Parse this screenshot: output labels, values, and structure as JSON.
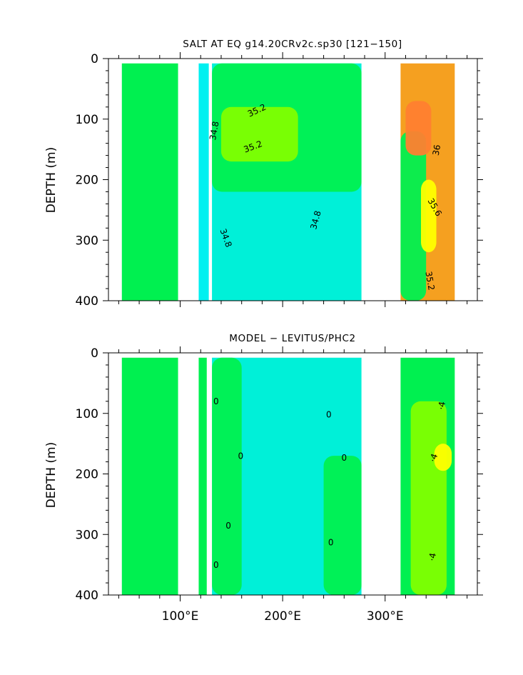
{
  "chart_data": [
    {
      "type": "heatmap",
      "title": "SALT AT EQ g14.20CRv2c.sp30 [121−150]",
      "ylabel": "DEPTH (m)",
      "xlabel": "",
      "xlim": [
        30,
        390
      ],
      "ylim": [
        400,
        0
      ],
      "y_ticks": [
        {
          "value": 0,
          "label": "0"
        },
        {
          "value": 100,
          "label": "100"
        },
        {
          "value": 200,
          "label": "200"
        },
        {
          "value": 300,
          "label": "300"
        },
        {
          "value": 400,
          "label": "400"
        }
      ],
      "x_ticks": [
        {
          "value": 100,
          "label": "100°E"
        },
        {
          "value": 200,
          "label": "200°E"
        },
        {
          "value": 300,
          "label": "300°E"
        }
      ],
      "land_gaps": [
        [
          98,
          118
        ],
        [
          128,
          131
        ],
        [
          277,
          315
        ],
        [
          368,
          390
        ],
        [
          30,
          43
        ]
      ],
      "sections": [
        {
          "x0": 43,
          "x1": 98,
          "color": "#00f050"
        },
        {
          "x0": 118,
          "x1": 128,
          "color": "#00f0f0"
        },
        {
          "x0": 131,
          "x1": 277,
          "color": "#00f0d8"
        },
        {
          "x0": 315,
          "x1": 368,
          "color": "#f5a020"
        }
      ],
      "regions": [
        {
          "x0": 131,
          "x1": 277,
          "y0": 0,
          "y1": 220,
          "color": "#00f050"
        },
        {
          "x0": 140,
          "x1": 215,
          "y0": 80,
          "y1": 170,
          "color": "#80ff00"
        },
        {
          "x0": 315,
          "x1": 340,
          "y0": 120,
          "y1": 400,
          "color": "#00f050"
        },
        {
          "x0": 335,
          "x1": 350,
          "y0": 200,
          "y1": 320,
          "color": "#ffff00"
        },
        {
          "x0": 320,
          "x1": 345,
          "y0": 70,
          "y1": 160,
          "color": "#ff8030"
        }
      ],
      "contour_labels": [
        {
          "text": "35.2",
          "x": 176,
          "y": 90,
          "rotate": -25
        },
        {
          "text": "34.8",
          "x": 136,
          "y": 120,
          "rotate": -80
        },
        {
          "text": "35.2",
          "x": 172,
          "y": 150,
          "rotate": -20
        },
        {
          "text": "34.8",
          "x": 235,
          "y": 268,
          "rotate": -75
        },
        {
          "text": "34.8",
          "x": 142,
          "y": 298,
          "rotate": 70
        },
        {
          "text": "36",
          "x": 353,
          "y": 152,
          "rotate": -80
        },
        {
          "text": "35.6",
          "x": 346,
          "y": 248,
          "rotate": 60
        },
        {
          "text": "35.2",
          "x": 341,
          "y": 368,
          "rotate": 80
        }
      ]
    },
    {
      "type": "heatmap",
      "title": "MODEL − LEVITUS/PHC2",
      "ylabel": "DEPTH (m)",
      "xlabel": "",
      "xlim": [
        30,
        390
      ],
      "ylim": [
        400,
        0
      ],
      "y_ticks": [
        {
          "value": 0,
          "label": "0"
        },
        {
          "value": 100,
          "label": "100"
        },
        {
          "value": 200,
          "label": "200"
        },
        {
          "value": 300,
          "label": "300"
        },
        {
          "value": 400,
          "label": "400"
        }
      ],
      "x_ticks": [
        {
          "value": 100,
          "label": "100°E"
        },
        {
          "value": 200,
          "label": "200°E"
        },
        {
          "value": 300,
          "label": "300°E"
        }
      ],
      "land_gaps": [
        [
          98,
          118
        ],
        [
          126,
          131
        ],
        [
          277,
          315
        ],
        [
          368,
          390
        ],
        [
          30,
          43
        ]
      ],
      "sections": [
        {
          "x0": 43,
          "x1": 98,
          "color": "#00f050"
        },
        {
          "x0": 118,
          "x1": 126,
          "color": "#00f050"
        },
        {
          "x0": 131,
          "x1": 277,
          "color": "#00f0d8"
        },
        {
          "x0": 315,
          "x1": 368,
          "color": "#00f050"
        }
      ],
      "regions": [
        {
          "x0": 131,
          "x1": 160,
          "y0": 0,
          "y1": 400,
          "color": "#00f050"
        },
        {
          "x0": 240,
          "x1": 277,
          "y0": 170,
          "y1": 400,
          "color": "#00f050"
        },
        {
          "x0": 325,
          "x1": 360,
          "y0": 80,
          "y1": 400,
          "color": "#80ff00"
        },
        {
          "x0": 348,
          "x1": 365,
          "y0": 150,
          "y1": 195,
          "color": "#ffff00"
        }
      ],
      "contour_labels": [
        {
          "text": "0",
          "x": 135,
          "y": 85,
          "rotate": 0
        },
        {
          "text": "0",
          "x": 245,
          "y": 107,
          "rotate": 0
        },
        {
          "text": "0",
          "x": 159,
          "y": 175,
          "rotate": 0
        },
        {
          "text": "0",
          "x": 260,
          "y": 178,
          "rotate": 0
        },
        {
          "text": "0",
          "x": 147,
          "y": 290,
          "rotate": 0
        },
        {
          "text": "0",
          "x": 247,
          "y": 318,
          "rotate": 0
        },
        {
          "text": "0",
          "x": 135,
          "y": 355,
          "rotate": 0
        },
        {
          "text": "·4",
          "x": 358,
          "y": 88,
          "rotate": -80
        },
        {
          "text": "·4",
          "x": 350,
          "y": 175,
          "rotate": -70
        },
        {
          "text": "·4",
          "x": 349,
          "y": 338,
          "rotate": -80
        }
      ]
    }
  ]
}
